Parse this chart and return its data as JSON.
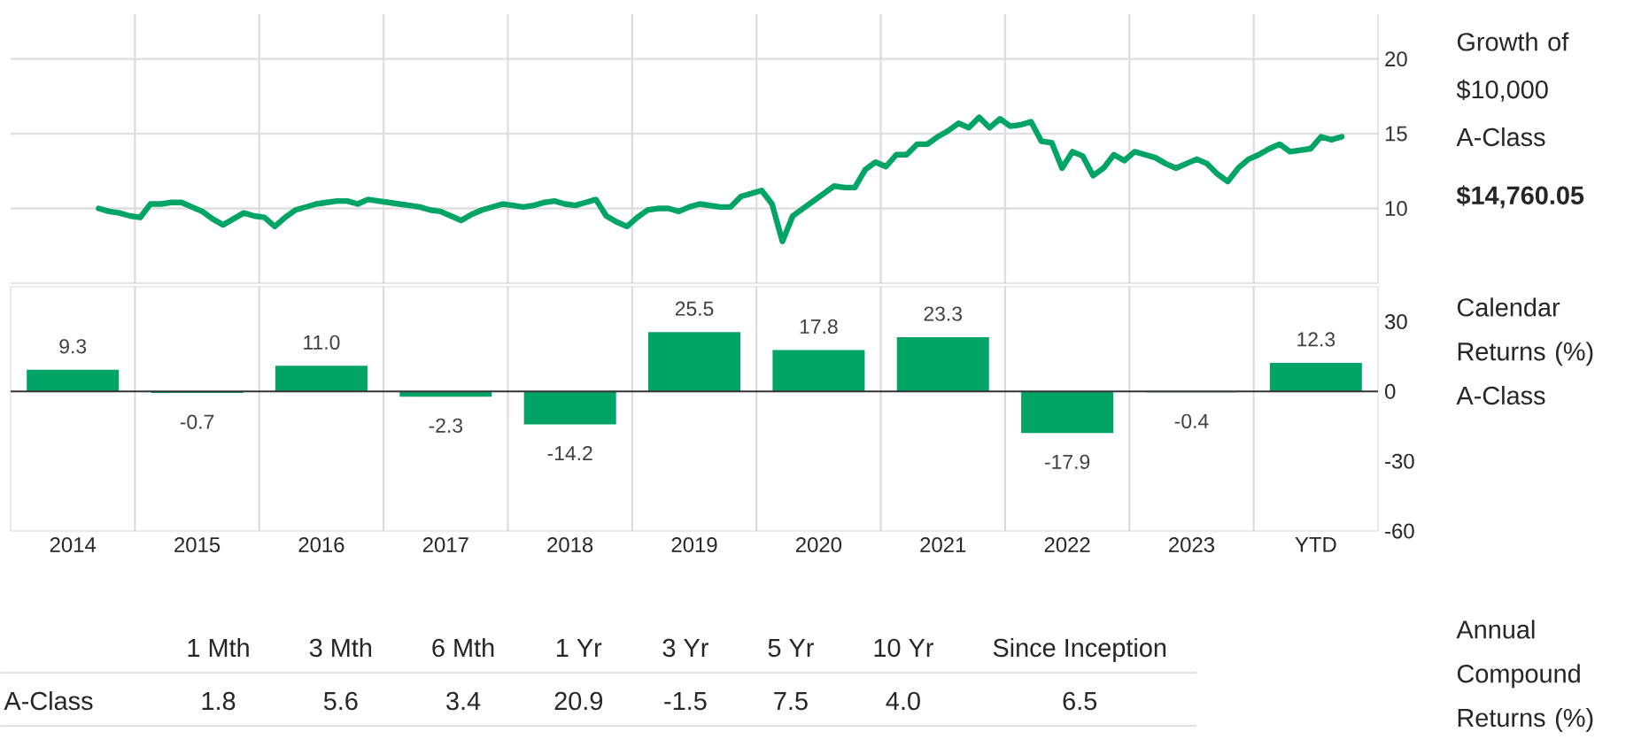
{
  "chart_data": [
    {
      "type": "line",
      "ylabel": "Growth of $10,000 A-Class",
      "annotations": [
        "$14,760.05"
      ],
      "categories": [
        null,
        null,
        null,
        null,
        null,
        null,
        null,
        null,
        null,
        null,
        null,
        null,
        null,
        null,
        null,
        null,
        null,
        null,
        null,
        null,
        null,
        null,
        null,
        null,
        null,
        null,
        null,
        null,
        null,
        null,
        null,
        null,
        null,
        null,
        null,
        null,
        null,
        null,
        null,
        null,
        null,
        null,
        null,
        null,
        null,
        null,
        null,
        null,
        null,
        null,
        null,
        null,
        null,
        null,
        null,
        null,
        null,
        null,
        null,
        null,
        null,
        null,
        null,
        null,
        null,
        null,
        null,
        null,
        null,
        null,
        null,
        null,
        null,
        null,
        null,
        null,
        null,
        null,
        null,
        null,
        null,
        null,
        null,
        null,
        null,
        null,
        null,
        null,
        null,
        null,
        null,
        null,
        null,
        null,
        null,
        null,
        null,
        null,
        null,
        null,
        null,
        null,
        null,
        null,
        null,
        null,
        null,
        null,
        null,
        null,
        null,
        null,
        null,
        null,
        null,
        null,
        null,
        null,
        null,
        null,
        null,
        null,
        null,
        null,
        null,
        null,
        null,
        null,
        null,
        null,
        null,
        null
      ],
      "series": [
        {
          "color": "#00a565",
          "values": [
            null,
            null,
            null,
            null,
            null,
            null,
            null,
            null,
            10.0,
            9.8,
            9.7,
            9.5,
            9.4,
            10.3,
            10.3,
            10.4,
            10.4,
            10.1,
            9.8,
            9.3,
            8.9,
            9.3,
            9.7,
            9.5,
            9.4,
            8.8,
            9.4,
            9.9,
            10.1,
            10.3,
            10.4,
            10.5,
            10.5,
            10.3,
            10.6,
            10.5,
            10.4,
            10.3,
            10.2,
            10.1,
            9.9,
            9.8,
            9.5,
            9.2,
            9.6,
            9.9,
            10.1,
            10.3,
            10.2,
            10.1,
            10.2,
            10.4,
            10.5,
            10.3,
            10.2,
            10.4,
            10.6,
            9.5,
            9.1,
            8.8,
            9.4,
            9.9,
            10.0,
            10.0,
            9.8,
            10.1,
            10.3,
            10.2,
            10.1,
            10.1,
            10.8,
            11.0,
            11.2,
            10.3,
            7.8,
            9.5,
            10.0,
            10.5,
            11.0,
            11.5,
            11.4,
            11.4,
            12.6,
            13.1,
            12.8,
            13.6,
            13.6,
            14.3,
            14.3,
            14.8,
            15.2,
            15.7,
            15.4,
            16.1,
            15.4,
            16.0,
            15.5,
            15.6,
            15.8,
            14.5,
            14.4,
            12.7,
            13.8,
            13.5,
            12.2,
            12.7,
            13.6,
            13.2,
            13.8,
            13.6,
            13.4,
            13.0,
            12.7,
            13.0,
            13.3,
            13.0,
            12.3,
            11.8,
            12.7,
            13.3,
            13.6,
            14.0,
            14.3,
            13.8,
            13.9,
            14.0,
            14.8,
            14.6,
            14.8,
            null,
            null,
            null
          ]
        }
      ],
      "ylim": [
        5,
        23
      ],
      "yticks": [
        10,
        15,
        20
      ],
      "grid": true,
      "tick_labels": "y"
    },
    {
      "type": "bar",
      "ylabel": "Calendar Returns (%) A-Class",
      "categories": [
        "2014",
        "2015",
        "2016",
        "2017",
        "2018",
        "2019",
        "2020",
        "2021",
        "2022",
        "2023",
        "YTD"
      ],
      "series": [
        {
          "color": "#00a565",
          "values": [
            9.3,
            -0.7,
            11.0,
            -2.3,
            -14.2,
            25.5,
            17.8,
            23.3,
            -17.9,
            -0.4,
            12.3
          ],
          "value_labels": [
            "9.3",
            "-0.7",
            "11.0",
            "-2.3",
            "-14.2",
            "25.5",
            "17.8",
            "23.3",
            "-17.9",
            "-0.4",
            "12.3"
          ]
        }
      ],
      "ylim": [
        -60,
        45
      ],
      "yticks": [
        -60,
        -30,
        0,
        30
      ],
      "grid": "x"
    },
    {
      "type": "other",
      "title": "Annual Compound Returns (%)",
      "categories": [
        "1 Mth",
        "3 Mth",
        "6 Mth",
        "1 Yr",
        "3 Yr",
        "5 Yr",
        "10 Yr",
        "Since Inception"
      ],
      "series": [
        {
          "name": "A-Class",
          "values": [
            1.8,
            5.6,
            3.4,
            20.9,
            -1.5,
            7.5,
            4.0,
            6.5
          ],
          "value_labels": [
            "1.8",
            "5.6",
            "3.4",
            "20.9",
            "-1.5",
            "7.5",
            "4.0",
            "6.5"
          ]
        }
      ]
    }
  ]
}
